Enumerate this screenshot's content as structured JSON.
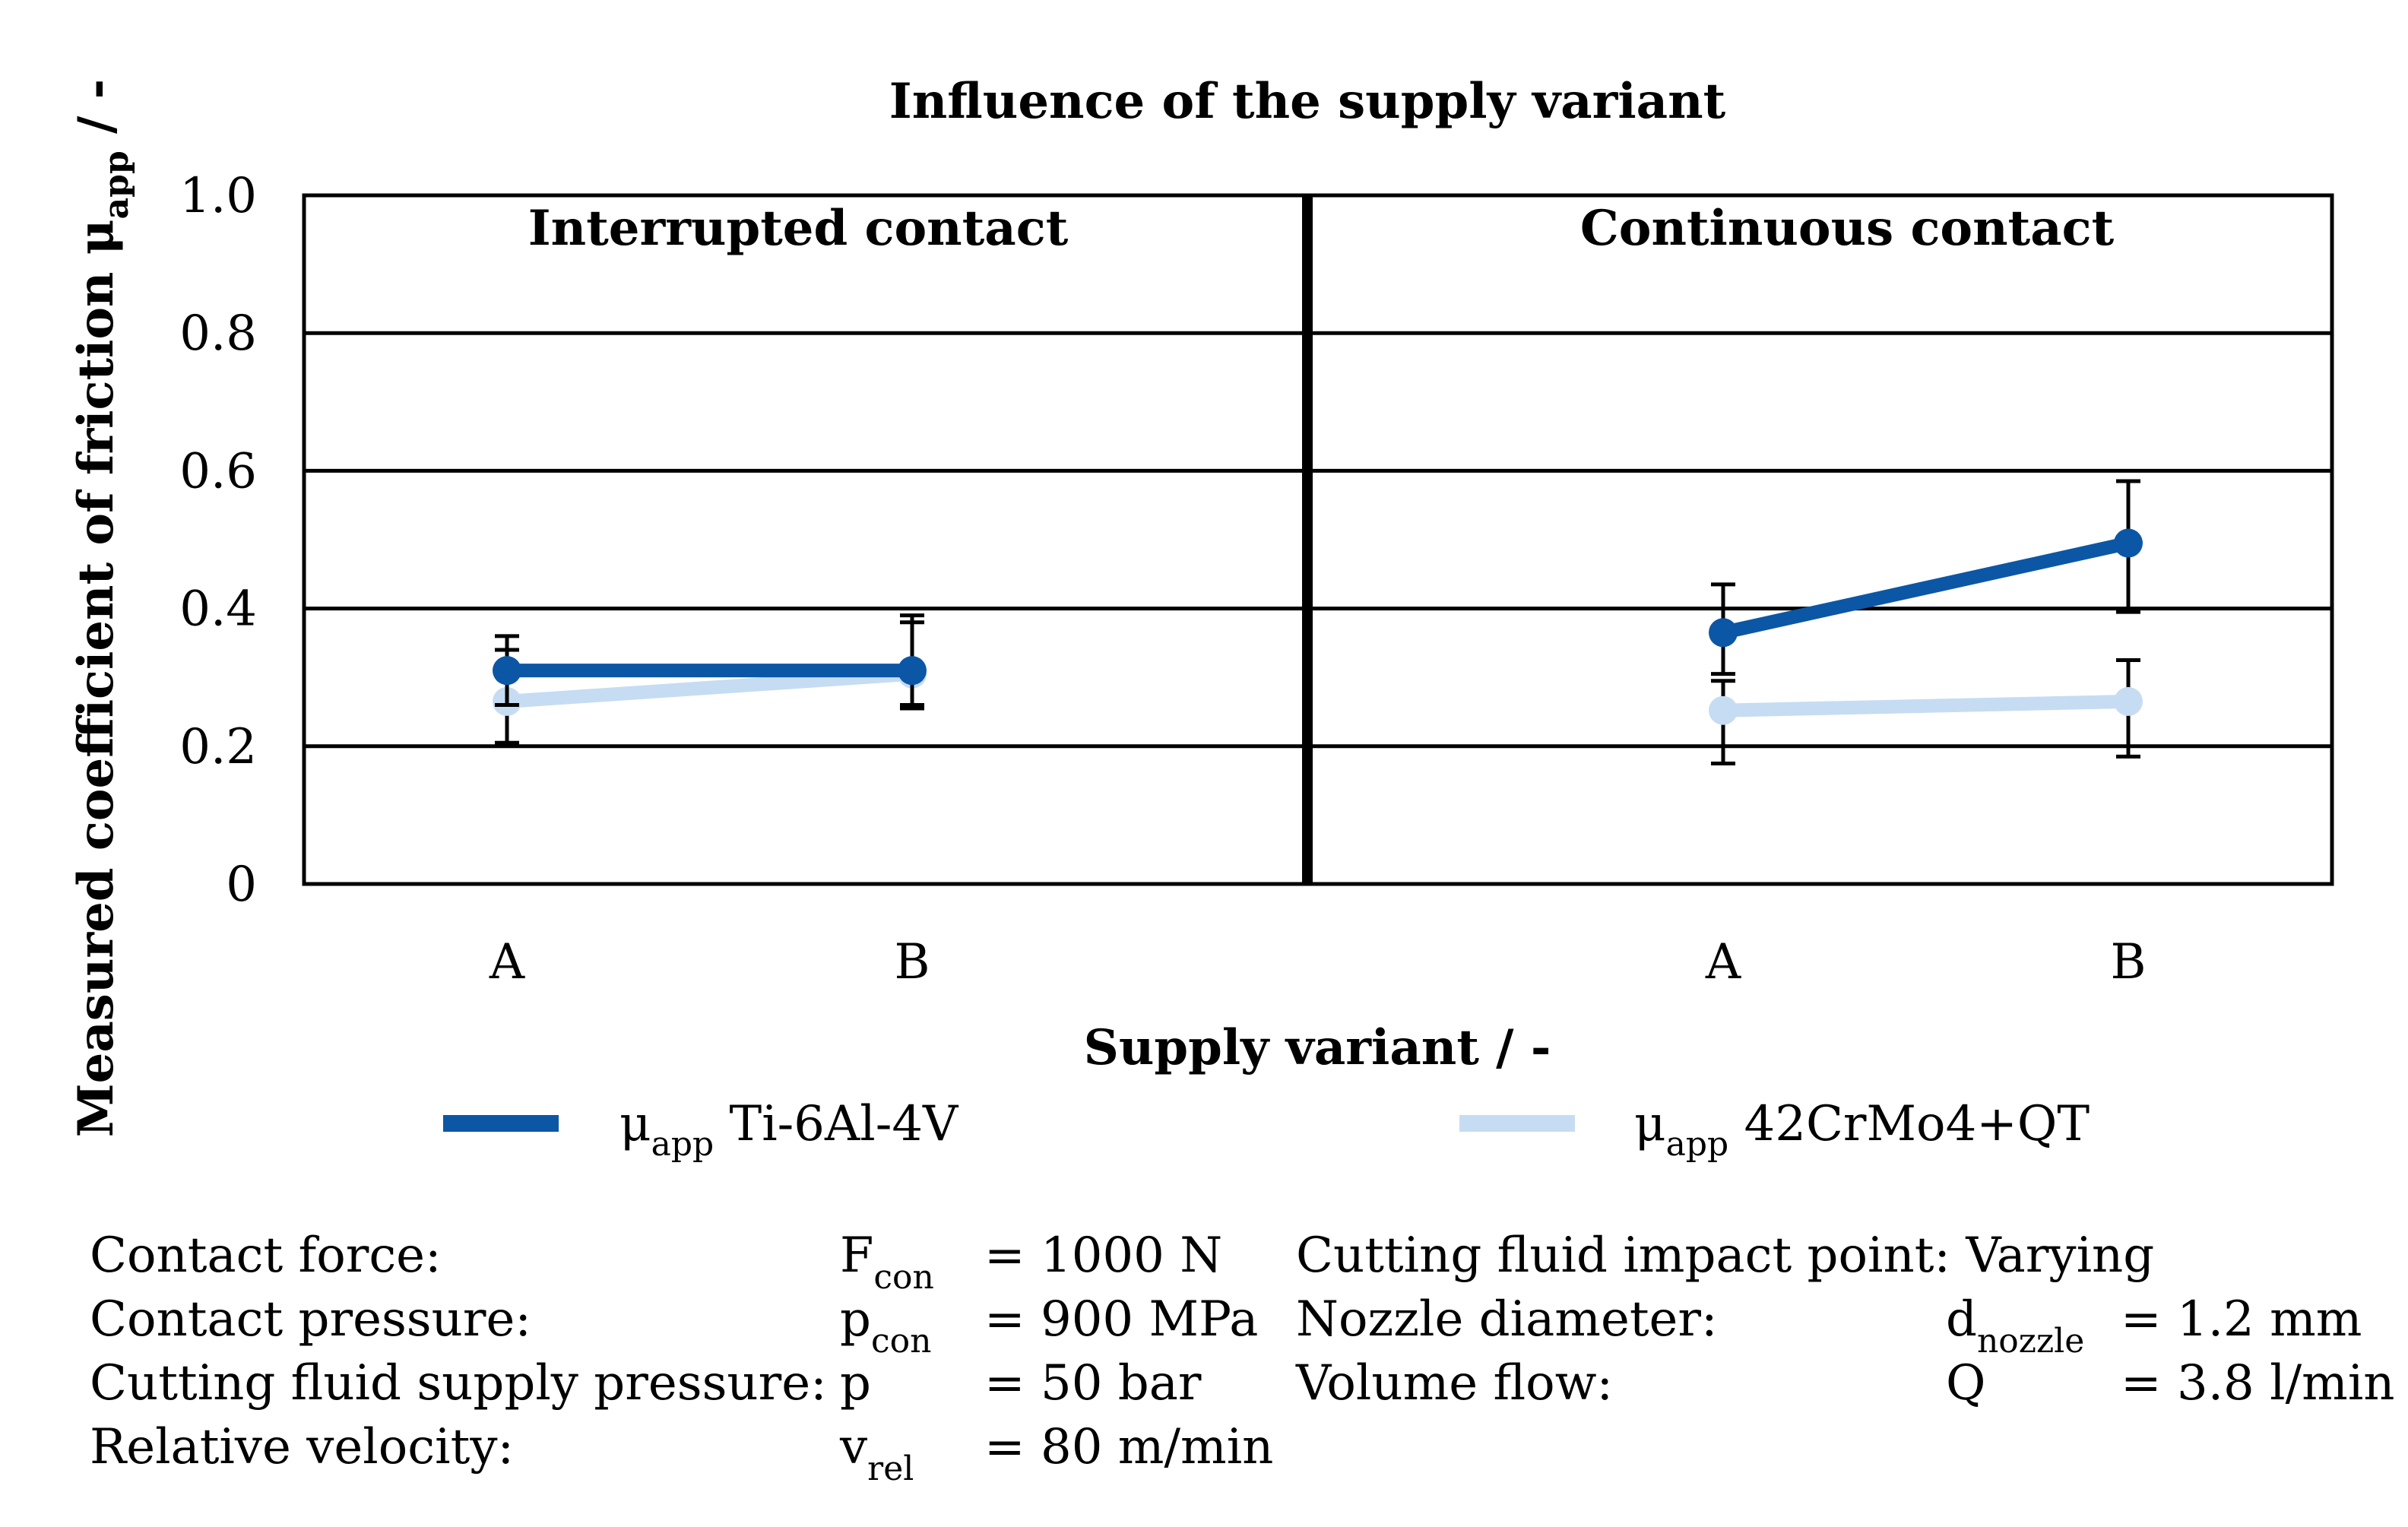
{
  "chart_data": {
    "type": "line",
    "title": "Influence of the supply variant",
    "ylabel_main": "Measured coefficient of friction μ",
    "ylabel_sub": "app",
    "ylabel_suffix": " / -",
    "xlabel": "Supply variant / -",
    "ylim": [
      0,
      1.0
    ],
    "yticks": [
      "0",
      "0.2",
      "0.4",
      "0.6",
      "0.8",
      "1.0"
    ],
    "grid": true,
    "panels": [
      {
        "title": "Interrupted contact",
        "categories": [
          "A",
          "B"
        ],
        "series": [
          {
            "name": "Ti-6Al-4V",
            "values": [
              0.31,
              0.31
            ],
            "err_low": [
              0.26,
              0.26
            ],
            "err_high": [
              0.36,
              0.39
            ]
          },
          {
            "name": "42CrMo4+QT",
            "values": [
              0.265,
              0.305
            ],
            "err_low": [
              0.205,
              0.255
            ],
            "err_high": [
              0.34,
              0.38
            ]
          }
        ]
      },
      {
        "title": "Continuous contact",
        "categories": [
          "A",
          "B"
        ],
        "series": [
          {
            "name": "Ti-6Al-4V",
            "values": [
              0.365,
              0.495
            ],
            "err_low": [
              0.305,
              0.395
            ],
            "err_high": [
              0.435,
              0.585
            ]
          },
          {
            "name": "42CrMo4+QT",
            "values": [
              0.252,
              0.265
            ],
            "err_low": [
              0.175,
              0.185
            ],
            "err_high": [
              0.295,
              0.325
            ]
          }
        ]
      }
    ],
    "legend": [
      {
        "prefix": "μ",
        "sub": "app",
        "label": " Ti-6Al-4V",
        "color": "#0b57a5"
      },
      {
        "prefix": "μ",
        "sub": "app",
        "label": " 42CrMo4+QT",
        "color": "#c6dcf2"
      }
    ]
  },
  "params": {
    "left": [
      {
        "label": "Contact force:",
        "sym": "F",
        "sym_sub": "con",
        "value": "= 1000 N"
      },
      {
        "label": "Contact pressure:",
        "sym": "p",
        "sym_sub": "con",
        "value": "= 900 MPa"
      },
      {
        "label": "Cutting fluid supply pressure:",
        "sym": "p",
        "sym_sub": "",
        "value": "= 50 bar"
      },
      {
        "label": "Relative velocity:",
        "sym": "v",
        "sym_sub": "rel",
        "value": "= 80 m/min"
      }
    ],
    "right": [
      {
        "label": "Cutting fluid impact point: Varying",
        "sym": "",
        "sym_sub": "",
        "value": ""
      },
      {
        "label": "Nozzle diameter:",
        "sym": "d",
        "sym_sub": "nozzle",
        "value": "= 1.2 mm"
      },
      {
        "label": "Volume flow:",
        "sym": "Q",
        "sym_sub": "",
        "value": "= 3.8 l/min"
      }
    ]
  }
}
